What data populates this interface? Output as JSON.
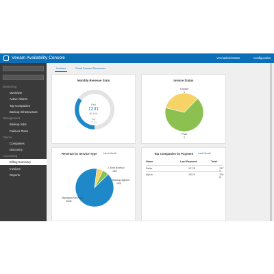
{
  "header": {
    "title": "Veeam Availability Console",
    "user": "VAC\\administrator",
    "config": "Configuration"
  },
  "sidebar": {
    "groups": [
      {
        "title": "Monitoring",
        "items": [
          "Overview",
          "Active Alarms",
          "Top Companies",
          "Backup Infrastructure"
        ]
      },
      {
        "title": "Management",
        "items": [
          "Backup Jobs",
          "Failover Plans"
        ]
      },
      {
        "title": "Clients",
        "items": [
          "Companies",
          "Discovery"
        ]
      },
      {
        "title": "Accounting",
        "items": [
          "Billing Summary",
          "Invoices",
          "Reports"
        ]
      }
    ]
  },
  "tabs": [
    "Invoices",
    "Cloud Connect Resources"
  ],
  "widgets": {
    "revenue_stats": {
      "title": "Monthly Revenue Stats",
      "paid_label": "Paid",
      "paid": "1231",
      "paid_sub": "($ 340)",
      "other_label": "All",
      "other": "77.21"
    },
    "invoice_status": {
      "title": "Invoice Status",
      "slices": [
        {
          "name": "Unpaid",
          "value": 1,
          "color": "#f6d365"
        },
        {
          "name": "Paid",
          "value": 2,
          "color": "#8cc152"
        }
      ]
    },
    "service_revenue": {
      "title": "Revenue by Service Type",
      "period": "Next Month",
      "slices": [
        {
          "name": "Cloud Backup",
          "value": 15,
          "label": "15$",
          "color": "#f6d365"
        },
        {
          "name": "Backup Agents",
          "value": 15,
          "label": "15$",
          "color": "#8cc152"
        },
        {
          "name": "Managed Services",
          "value": 250,
          "label": "250$",
          "color": "#1f88c9"
        }
      ]
    },
    "top_companies": {
      "title": "Top Companies by Payment",
      "period": "Last Month",
      "columns": [
        "Name",
        "Last Payment",
        "Total ↓"
      ],
      "rows": [
        [
          "Delta",
          "137 $",
          "137 $"
        ],
        [
          "Alpha",
          "100 $",
          "100 $"
        ]
      ]
    }
  }
}
